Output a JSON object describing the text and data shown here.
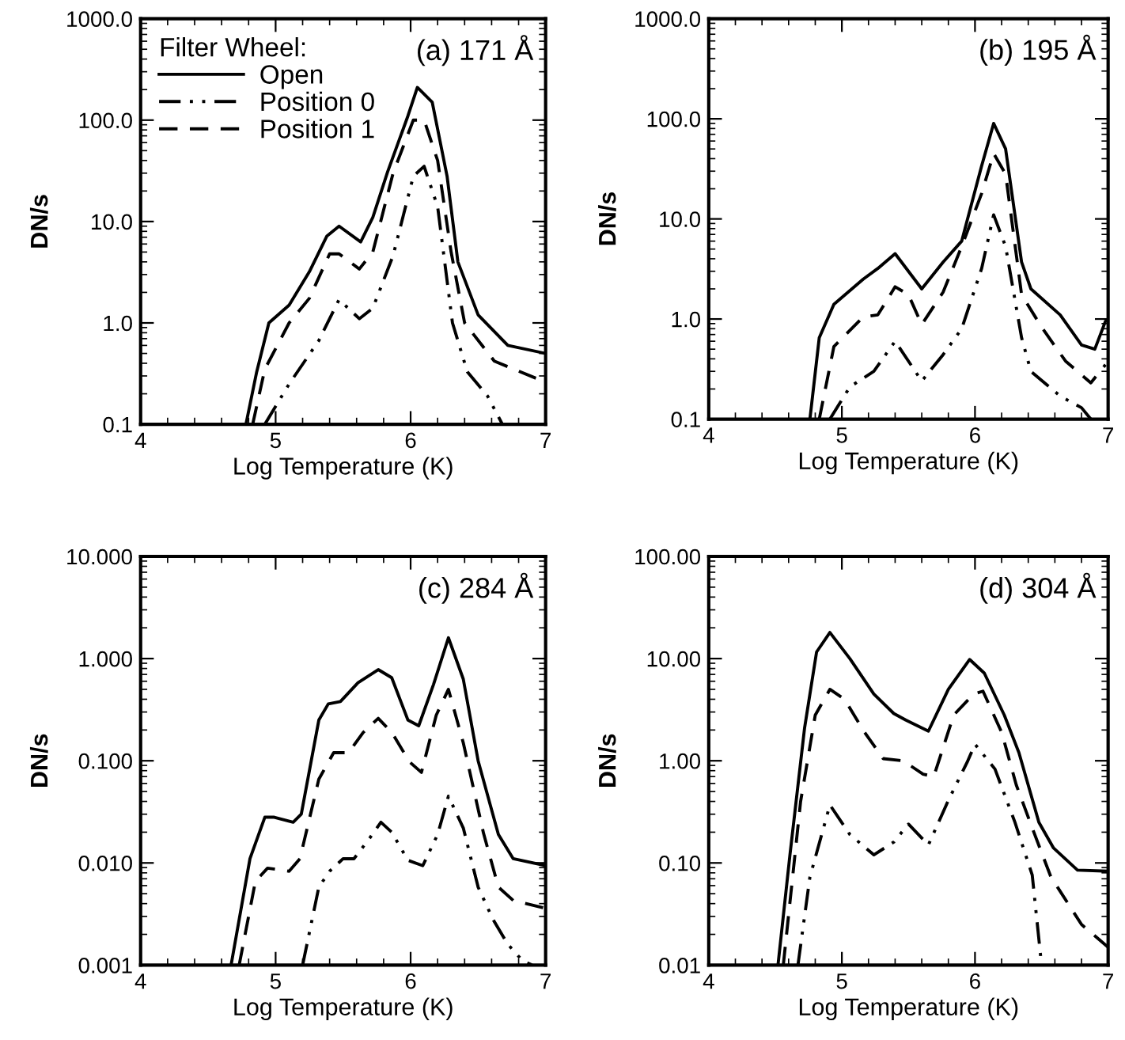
{
  "chart_data": [
    {
      "type": "line",
      "title": "(a) 171 Å",
      "xlabel": "Log Temperature (K)",
      "ylabel": "DN/s",
      "log": "y",
      "xlim": [
        4,
        7
      ],
      "xticks": [
        4,
        5,
        6,
        7
      ],
      "ylim": [
        0.1,
        1000
      ],
      "yticks": [
        {
          "value": 0.1,
          "label": "0.1"
        },
        {
          "value": 1,
          "label": "1.0"
        },
        {
          "value": 10,
          "label": "10.0"
        },
        {
          "value": 100,
          "label": "100.0"
        },
        {
          "value": 1000,
          "label": "1000.0"
        }
      ],
      "legend": "top left",
      "legend_title": "Filter Wheel:",
      "grid": false,
      "series": [
        {
          "name": "Open",
          "color": "#000000",
          "line_style": "solid",
          "x": [
            4.78,
            4.86,
            4.95,
            5.1,
            5.25,
            5.38,
            5.47,
            5.63,
            5.72,
            5.83,
            5.98,
            6.05,
            6.16,
            6.27,
            6.35,
            6.5,
            6.72,
            7.0
          ],
          "values": [
            0.1,
            0.33,
            1.0,
            1.5,
            3.2,
            7.2,
            9,
            6.3,
            11,
            31,
            110,
            210,
            150,
            28,
            4,
            1.2,
            0.6,
            0.5
          ]
        },
        {
          "name": "Position 0",
          "color": "#000000",
          "line_style": "dashdotdot",
          "x": [
            4.92,
            5.1,
            5.32,
            5.47,
            5.62,
            5.72,
            5.87,
            6.02,
            6.1,
            6.2,
            6.31,
            6.42,
            6.57,
            6.68
          ],
          "values": [
            0.1,
            0.25,
            0.67,
            1.7,
            1.1,
            1.4,
            4.6,
            28,
            35,
            14,
            1.0,
            0.33,
            0.19,
            0.1
          ]
        },
        {
          "name": "Position 1",
          "color": "#000000",
          "line_style": "dashed",
          "x": [
            4.83,
            4.92,
            5.1,
            5.25,
            5.4,
            5.47,
            5.62,
            5.72,
            5.87,
            6.02,
            6.1,
            6.2,
            6.3,
            6.4,
            6.62,
            7.0
          ],
          "values": [
            0.1,
            0.35,
            1.0,
            1.75,
            4.8,
            4.8,
            3.4,
            5,
            30,
            100,
            100,
            40,
            5,
            1.0,
            0.42,
            0.26
          ]
        }
      ]
    },
    {
      "type": "line",
      "title": "(b) 195 Å",
      "xlabel": "Log Temperature (K)",
      "ylabel": "DN/s",
      "log": "y",
      "xlim": [
        4,
        7
      ],
      "xticks": [
        4,
        5,
        6,
        7
      ],
      "ylim": [
        0.1,
        1000
      ],
      "yticks": [
        {
          "value": 0.1,
          "label": "0.1"
        },
        {
          "value": 1,
          "label": "1.0"
        },
        {
          "value": 10,
          "label": "10.0"
        },
        {
          "value": 100,
          "label": "100.0"
        },
        {
          "value": 1000,
          "label": "1000.0"
        }
      ],
      "grid": false,
      "series": [
        {
          "color": "#000000",
          "line_style": "solid",
          "x": [
            4.76,
            4.83,
            4.94,
            5.16,
            5.27,
            5.4,
            5.6,
            5.76,
            5.9,
            6.05,
            6.14,
            6.23,
            6.35,
            6.42,
            6.64,
            6.8,
            6.9,
            6.98,
            7.0
          ],
          "values": [
            0.1,
            0.65,
            1.4,
            2.5,
            3.2,
            4.5,
            2.0,
            3.7,
            6,
            34,
            90,
            50,
            3.7,
            2.0,
            1.1,
            0.55,
            0.5,
            0.95,
            1.0
          ]
        },
        {
          "color": "#000000",
          "line_style": "dashdotdot",
          "x": [
            4.91,
            5.06,
            5.24,
            5.4,
            5.6,
            5.76,
            5.9,
            6.05,
            6.14,
            6.23,
            6.35,
            6.42,
            6.64,
            6.8,
            6.87
          ],
          "values": [
            0.1,
            0.21,
            0.3,
            0.6,
            0.24,
            0.44,
            0.8,
            3.2,
            11,
            5.3,
            0.65,
            0.3,
            0.17,
            0.13,
            0.1
          ]
        },
        {
          "color": "#000000",
          "line_style": "dashed",
          "x": [
            4.83,
            4.94,
            5.16,
            5.27,
            5.4,
            5.5,
            5.6,
            5.76,
            5.9,
            6.05,
            6.14,
            6.23,
            6.35,
            6.5,
            6.68,
            6.87,
            6.98
          ],
          "values": [
            0.1,
            0.53,
            1.05,
            1.1,
            2.1,
            1.75,
            0.88,
            1.85,
            5.3,
            18,
            45,
            28,
            1.75,
            0.83,
            0.38,
            0.23,
            0.35
          ]
        }
      ]
    },
    {
      "type": "line",
      "title": "(c) 284 Å",
      "xlabel": "Log Temperature (K)",
      "ylabel": "DN/s",
      "log": "y",
      "xlim": [
        4,
        7
      ],
      "xticks": [
        4,
        5,
        6,
        7
      ],
      "ylim": [
        0.001,
        10
      ],
      "yticks": [
        {
          "value": 0.001,
          "label": "0.001"
        },
        {
          "value": 0.01,
          "label": "0.010"
        },
        {
          "value": 0.1,
          "label": "0.100"
        },
        {
          "value": 1,
          "label": "1.000"
        },
        {
          "value": 10,
          "label": "10.000"
        }
      ],
      "grid": false,
      "series": [
        {
          "color": "#000000",
          "line_style": "solid",
          "x": [
            4.67,
            4.81,
            4.92,
            4.99,
            5.13,
            5.19,
            5.32,
            5.39,
            5.48,
            5.61,
            5.76,
            5.86,
            5.98,
            6.06,
            6.17,
            6.28,
            6.39,
            6.5,
            6.65,
            6.76,
            7.0
          ],
          "values": [
            0.001,
            0.011,
            0.028,
            0.028,
            0.025,
            0.03,
            0.25,
            0.36,
            0.38,
            0.58,
            0.78,
            0.65,
            0.25,
            0.22,
            0.56,
            1.6,
            0.63,
            0.1,
            0.019,
            0.011,
            0.0094
          ]
        },
        {
          "color": "#000000",
          "line_style": "dashdotdot",
          "x": [
            5.2,
            5.32,
            5.4,
            5.5,
            5.58,
            5.69,
            5.78,
            5.86,
            5.98,
            6.09,
            6.2,
            6.28,
            6.39,
            6.5,
            6.61,
            6.72,
            6.83,
            6.9
          ],
          "values": [
            0.001,
            0.0058,
            0.0083,
            0.011,
            0.011,
            0.017,
            0.025,
            0.02,
            0.0106,
            0.0094,
            0.019,
            0.045,
            0.022,
            0.0058,
            0.0028,
            0.0016,
            0.0011,
            0.001
          ]
        },
        {
          "color": "#000000",
          "line_style": "dashed",
          "x": [
            4.73,
            4.85,
            4.94,
            5.1,
            5.18,
            5.32,
            5.43,
            5.54,
            5.65,
            5.76,
            5.86,
            5.99,
            6.08,
            6.19,
            6.28,
            6.39,
            6.54,
            6.65,
            6.76,
            7.0
          ],
          "values": [
            0.001,
            0.0066,
            0.0089,
            0.0083,
            0.011,
            0.066,
            0.12,
            0.12,
            0.19,
            0.26,
            0.19,
            0.098,
            0.077,
            0.28,
            0.5,
            0.15,
            0.0195,
            0.0058,
            0.0043,
            0.0036
          ]
        }
      ]
    },
    {
      "type": "line",
      "title": "(d) 304 Å",
      "xlabel": "Log Temperature (K)",
      "ylabel": "DN/s",
      "log": "y",
      "xlim": [
        4,
        7
      ],
      "xticks": [
        4,
        5,
        6,
        7
      ],
      "ylim": [
        0.01,
        100
      ],
      "yticks": [
        {
          "value": 0.01,
          "label": "0.01"
        },
        {
          "value": 0.1,
          "label": "0.10"
        },
        {
          "value": 1,
          "label": "1.00"
        },
        {
          "value": 10,
          "label": "10.00"
        },
        {
          "value": 100,
          "label": "100.00"
        }
      ],
      "grid": false,
      "series": [
        {
          "color": "#000000",
          "line_style": "solid",
          "x": [
            4.52,
            4.61,
            4.72,
            4.81,
            4.91,
            5.06,
            5.24,
            5.39,
            5.48,
            5.65,
            5.8,
            5.96,
            6.07,
            6.22,
            6.33,
            6.48,
            6.59,
            6.77,
            7.0
          ],
          "values": [
            0.01,
            0.12,
            2.1,
            11.6,
            18,
            10,
            4.5,
            2.9,
            2.5,
            1.95,
            5,
            9.8,
            7.2,
            2.8,
            1.2,
            0.25,
            0.14,
            0.085,
            0.083
          ]
        },
        {
          "color": "#000000",
          "line_style": "dashdotdot",
          "x": [
            4.67,
            4.76,
            4.91,
            5.06,
            5.24,
            5.39,
            5.5,
            5.65,
            5.8,
            5.94,
            6.0,
            6.15,
            6.3,
            6.43,
            6.5
          ],
          "values": [
            0.01,
            0.073,
            0.37,
            0.19,
            0.12,
            0.16,
            0.24,
            0.15,
            0.41,
            0.96,
            1.45,
            0.83,
            0.25,
            0.076,
            0.01
          ]
        },
        {
          "color": "#000000",
          "line_style": "dashed",
          "x": [
            4.56,
            4.69,
            4.8,
            4.91,
            5.02,
            5.17,
            5.31,
            5.46,
            5.61,
            5.69,
            5.84,
            5.99,
            6.06,
            6.2,
            6.31,
            6.43,
            6.57,
            6.8,
            7.0
          ],
          "values": [
            0.01,
            0.4,
            2.8,
            5.0,
            4.0,
            1.9,
            1.05,
            1.0,
            0.74,
            0.7,
            2.8,
            4.5,
            4.8,
            1.9,
            0.58,
            0.22,
            0.073,
            0.025,
            0.015
          ]
        }
      ]
    }
  ]
}
